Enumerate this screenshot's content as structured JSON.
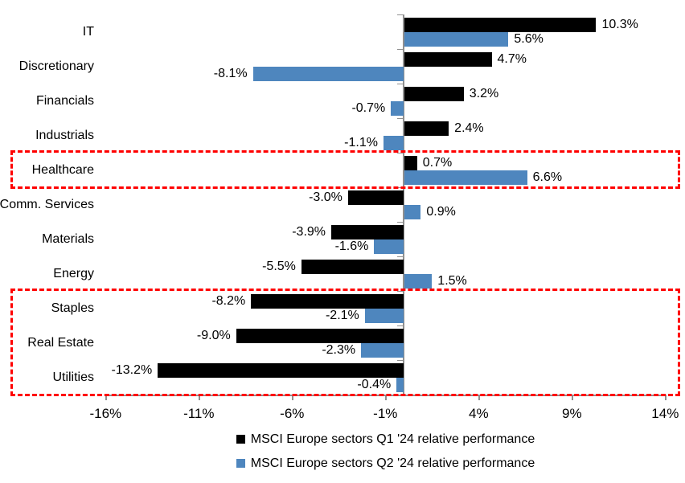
{
  "chart_data": {
    "type": "bar",
    "orientation": "horizontal",
    "title": "",
    "categories": [
      "IT",
      "Discretionary",
      "Financials",
      "Industrials",
      "Healthcare",
      "Comm. Services",
      "Materials",
      "Energy",
      "Staples",
      "Real Estate",
      "Utilities"
    ],
    "series": [
      {
        "name": "MSCI Europe sectors Q1 '24 relative performance",
        "color": "#000000",
        "values": [
          10.3,
          4.7,
          3.2,
          2.4,
          0.7,
          -3.0,
          -3.9,
          -5.5,
          -8.2,
          -9.0,
          -13.2
        ]
      },
      {
        "name": "MSCI Europe sectors Q2 '24 relative performance",
        "color": "#4E86BE",
        "values": [
          5.6,
          -8.1,
          -0.7,
          -1.1,
          6.6,
          0.9,
          -1.6,
          1.5,
          -2.1,
          -2.3,
          -0.4
        ]
      }
    ],
    "data_labels": {
      "series_0": [
        "10.3%",
        "4.7%",
        "3.2%",
        "2.4%",
        "0.7%",
        "-3.0%",
        "-3.9%",
        "-5.5%",
        "-8.2%",
        "-9.0%",
        "-13.2%"
      ],
      "series_1": [
        "5.6%",
        "-8.1%",
        "-0.7%",
        "-1.1%",
        "6.6%",
        "0.9%",
        "-1.6%",
        "1.5%",
        "-2.1%",
        "-2.3%",
        "-0.4%"
      ]
    },
    "x_axis": {
      "tick_labels": [
        "-16%",
        "-11%",
        "-6%",
        "-1%",
        "4%",
        "9%",
        "14%"
      ],
      "tick_values": [
        -16,
        -11,
        -6,
        -1,
        4,
        9,
        14
      ],
      "range": [
        -16,
        14
      ]
    },
    "ylabel": "",
    "xlabel": "",
    "grid": false,
    "legend_position": "bottom",
    "axis_color": "#909090",
    "highlight_color": "#FF0000",
    "highlight_boxes": [
      {
        "style": "dashed",
        "color": "#FF0000",
        "from_category": "Healthcare",
        "to_category": "Healthcare"
      },
      {
        "style": "dashed",
        "color": "#FF0000",
        "from_category": "Staples",
        "to_category": "Utilities"
      }
    ]
  }
}
